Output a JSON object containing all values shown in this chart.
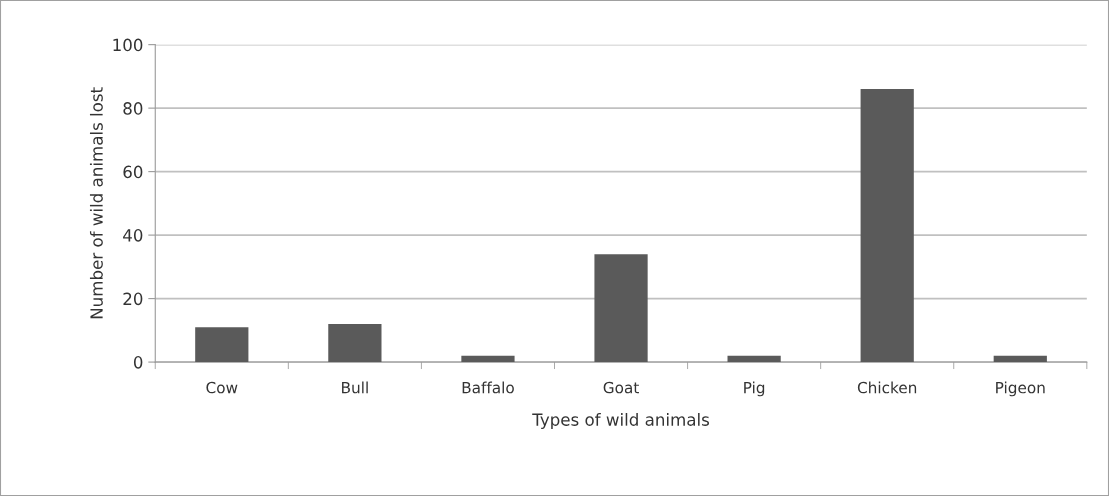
{
  "chart_data": {
    "type": "bar",
    "xlabel": "Types of wild animals",
    "ylabel": "Number of wild animals lost",
    "categories": [
      "Cow",
      "Bull",
      "Baffalo",
      "Goat",
      "Pig",
      "Chicken",
      "Pigeon"
    ],
    "values": [
      11,
      12,
      2,
      34,
      2,
      86,
      2
    ],
    "color": "#5a5a5a",
    "ylim": [
      0,
      100
    ],
    "yticks": [
      0,
      20,
      40,
      60,
      80,
      100
    ],
    "grid": "y"
  }
}
